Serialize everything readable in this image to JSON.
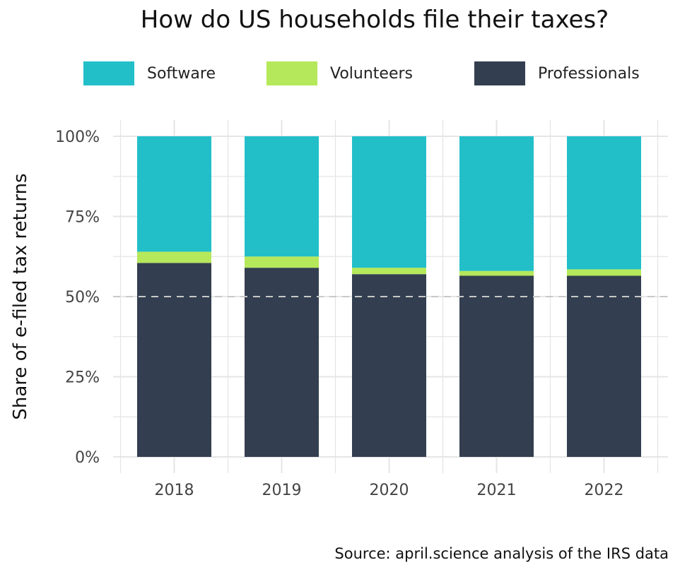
{
  "title": "How do US households file their taxes?",
  "source": "Source: april.science analysis of the IRS data",
  "legend": [
    {
      "key": "software",
      "label": "Software",
      "color": "#22bfc9"
    },
    {
      "key": "volunteers",
      "label": "Volunteers",
      "color": "#b5e85a"
    },
    {
      "key": "professionals",
      "label": "Professionals",
      "color": "#333f50"
    }
  ],
  "colors": {
    "background": "#ffffff",
    "grid": "#e5e5e5",
    "reference_line": "#c8c8c8",
    "text": "#222222"
  },
  "chart_data": {
    "type": "bar",
    "stacked": true,
    "title": "How do US households file their taxes?",
    "xlabel": "",
    "ylabel": "Share of e-filed tax returns",
    "categories": [
      "2018",
      "2019",
      "2020",
      "2021",
      "2022"
    ],
    "series": [
      {
        "name": "Professionals",
        "color": "#333f50",
        "values": [
          60.5,
          59.0,
          57.0,
          56.5,
          56.5
        ]
      },
      {
        "name": "Volunteers",
        "color": "#b5e85a",
        "values": [
          3.5,
          3.5,
          2.0,
          1.5,
          2.0
        ]
      },
      {
        "name": "Software",
        "color": "#22bfc9",
        "values": [
          36.0,
          37.5,
          41.0,
          42.0,
          41.5
        ]
      }
    ],
    "ylim": [
      0,
      100
    ],
    "yticks": [
      0,
      25,
      50,
      75,
      100
    ],
    "ytick_labels": [
      "0%",
      "25%",
      "50%",
      "75%",
      "100%"
    ],
    "reference_line": {
      "y": 50,
      "style": "dashed"
    },
    "grid": true,
    "legend_position": "top"
  }
}
